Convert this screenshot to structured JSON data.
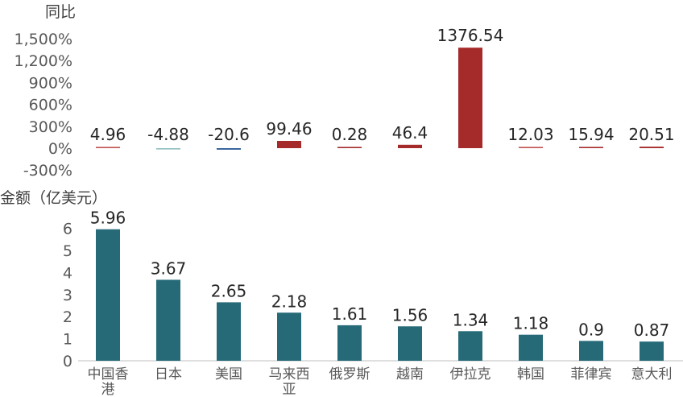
{
  "chart_data": [
    {
      "type": "bar",
      "ylabel": "同比",
      "categories": [
        "中国香港",
        "日本",
        "美国",
        "马来西亚",
        "俄罗斯",
        "越南",
        "伊拉克",
        "韩国",
        "菲律宾",
        "意大利"
      ],
      "values": [
        4.96,
        -4.88,
        -20.6,
        99.46,
        0.28,
        46.4,
        1376.54,
        12.03,
        15.94,
        20.51
      ],
      "value_labels": [
        "4.96",
        "-4.88",
        "-20.6",
        "99.46",
        "0.28",
        "46.4",
        "1376.54",
        "12.03",
        "15.94",
        "20.51"
      ],
      "yticks": [
        "1,500%",
        "1,200%",
        "900%",
        "600%",
        "300%",
        "0%",
        "-300%"
      ],
      "ytick_values": [
        1500,
        1200,
        900,
        600,
        300,
        0,
        -300
      ],
      "ylim": [
        -300,
        1500
      ],
      "bar_colors": [
        "#c0504d",
        "#8fbcbc",
        "#2e5c9a",
        "#a52a2a",
        "#a52a2a",
        "#a52a2a",
        "#a52a2a",
        "#c0504d",
        "#a52a2a",
        "#a52a2a"
      ],
      "grid": false
    },
    {
      "type": "bar",
      "ylabel": "金额（亿美元）",
      "categories": [
        "中国香港",
        "日本",
        "美国",
        "马来西亚",
        "俄罗斯",
        "越南",
        "伊拉克",
        "韩国",
        "菲律宾",
        "意大利"
      ],
      "category_lines": [
        [
          "中国香",
          "港"
        ],
        [
          "日本"
        ],
        [
          "美国"
        ],
        [
          "马来西",
          "亚"
        ],
        [
          "俄罗斯"
        ],
        [
          "越南"
        ],
        [
          "伊拉克"
        ],
        [
          "韩国"
        ],
        [
          "菲律宾"
        ],
        [
          "意大利"
        ]
      ],
      "values": [
        5.96,
        3.67,
        2.65,
        2.18,
        1.61,
        1.56,
        1.34,
        1.18,
        0.9,
        0.87
      ],
      "value_labels": [
        "5.96",
        "3.67",
        "2.65",
        "2.18",
        "1.61",
        "1.56",
        "1.34",
        "1.18",
        "0.9",
        "0.87"
      ],
      "yticks": [
        "6",
        "5",
        "4",
        "3",
        "2",
        "1",
        "0"
      ],
      "ytick_values": [
        6,
        5,
        4,
        3,
        2,
        1,
        0
      ],
      "ylim": [
        0,
        6.3
      ],
      "bar_color": "#266a78",
      "grid": false
    }
  ]
}
